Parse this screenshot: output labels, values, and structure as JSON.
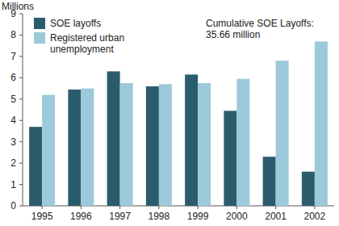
{
  "chart_data": {
    "type": "bar",
    "y_label": "Millions",
    "annotation": "Cumulative SOE Layoffs: 35.66 million",
    "categories": [
      "1995",
      "1996",
      "1997",
      "1998",
      "1999",
      "2000",
      "2001",
      "2002"
    ],
    "series": [
      {
        "name": "SOE layoffs",
        "color": "#2b5c6b",
        "values": [
          3.7,
          5.45,
          6.3,
          5.6,
          6.15,
          4.45,
          2.3,
          1.6
        ]
      },
      {
        "name": "Registered urban unemployment",
        "color": "#9ccadb",
        "values": [
          5.2,
          5.5,
          5.75,
          5.7,
          5.75,
          5.95,
          6.8,
          7.7
        ]
      }
    ],
    "ylim": [
      0,
      9
    ],
    "yticks": [
      0,
      1,
      2,
      3,
      4,
      5,
      6,
      7,
      8,
      9
    ],
    "grid": false,
    "legend": "top-left"
  }
}
